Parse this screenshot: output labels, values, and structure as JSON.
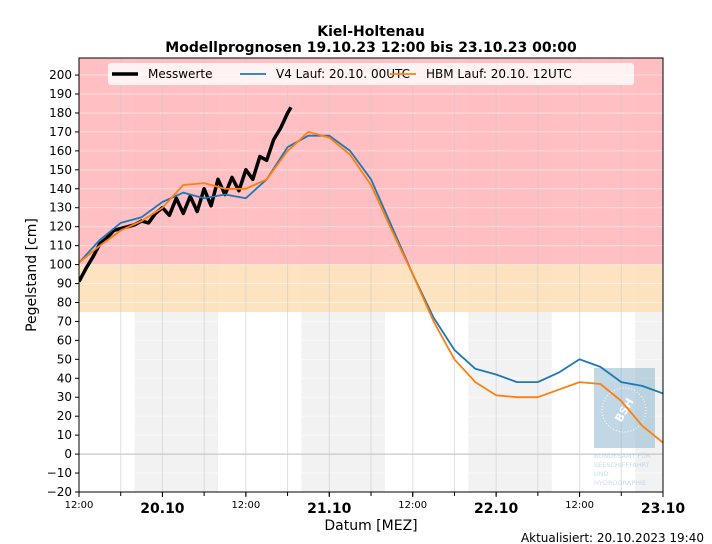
{
  "chart_data": {
    "type": "line",
    "title": "Kiel-Holtenau",
    "subtitle": "Modellprognosen 19.10.23 12:00 bis 23.10.23 00:00",
    "xlabel": "Datum [MEZ]",
    "ylabel": "Pegelstand [cm]",
    "xlim": [
      "2023-10-19T12:00",
      "2023-10-23T00:00"
    ],
    "ylim": [
      -20,
      209
    ],
    "yticks": [
      -20,
      -10,
      0,
      10,
      20,
      30,
      40,
      50,
      60,
      70,
      80,
      90,
      100,
      110,
      120,
      130,
      140,
      150,
      160,
      170,
      180,
      190,
      200
    ],
    "xticks": [
      {
        "t": "2023-10-19T12:00",
        "label": "12:00",
        "major": false
      },
      {
        "t": "2023-10-20T00:00",
        "label": "20.10",
        "major": true
      },
      {
        "t": "2023-10-20T12:00",
        "label": "12:00",
        "major": false
      },
      {
        "t": "2023-10-21T00:00",
        "label": "21.10",
        "major": true
      },
      {
        "t": "2023-10-21T12:00",
        "label": "12:00",
        "major": false
      },
      {
        "t": "2023-10-22T00:00",
        "label": "22.10",
        "major": true
      },
      {
        "t": "2023-10-22T12:00",
        "label": "12:00",
        "major": false
      },
      {
        "t": "2023-10-23T00:00",
        "label": "23.10",
        "major": true
      }
    ],
    "grid": true,
    "legend_placement": "top",
    "bands": [
      {
        "from": 100,
        "to": 209,
        "color": "#ffb8bc"
      },
      {
        "from": 75,
        "to": 100,
        "color": "#fde0b8"
      }
    ],
    "night_shading": [
      [
        "2023-10-19T20:00",
        "2023-10-20T08:00"
      ],
      [
        "2023-10-20T20:00",
        "2023-10-21T08:00"
      ],
      [
        "2023-10-21T20:00",
        "2023-10-22T08:00"
      ],
      [
        "2023-10-22T20:00",
        "2023-10-23T00:00"
      ]
    ],
    "series": [
      {
        "name": "Messwerte",
        "color": "#000000",
        "x": [
          "2023-10-19T12:00",
          "2023-10-19T13:00",
          "2023-10-19T14:00",
          "2023-10-19T15:00",
          "2023-10-19T16:00",
          "2023-10-19T17:00",
          "2023-10-19T18:00",
          "2023-10-19T19:00",
          "2023-10-19T20:00",
          "2023-10-19T21:00",
          "2023-10-19T22:00",
          "2023-10-19T23:00",
          "2023-10-20T00:00",
          "2023-10-20T01:00",
          "2023-10-20T02:00",
          "2023-10-20T03:00",
          "2023-10-20T04:00",
          "2023-10-20T05:00",
          "2023-10-20T06:00",
          "2023-10-20T07:00",
          "2023-10-20T08:00",
          "2023-10-20T09:00",
          "2023-10-20T10:00",
          "2023-10-20T11:00",
          "2023-10-20T12:00",
          "2023-10-20T13:00",
          "2023-10-20T14:00",
          "2023-10-20T15:00",
          "2023-10-20T16:00",
          "2023-10-20T17:00",
          "2023-10-20T18:00",
          "2023-10-20T18:30"
        ],
        "values": [
          91,
          98,
          104,
          111,
          114,
          118,
          119,
          120,
          121,
          123,
          122,
          127,
          130,
          126,
          135,
          127,
          136,
          128,
          140,
          131,
          145,
          137,
          146,
          139,
          150,
          145,
          157,
          155,
          166,
          172,
          180,
          183
        ]
      },
      {
        "name": "V4 Lauf: 20.10. 00UTC",
        "color": "#1f77b4",
        "x": [
          "2023-10-19T12:00",
          "2023-10-19T15:00",
          "2023-10-19T18:00",
          "2023-10-19T21:00",
          "2023-10-20T00:00",
          "2023-10-20T03:00",
          "2023-10-20T06:00",
          "2023-10-20T09:00",
          "2023-10-20T12:00",
          "2023-10-20T15:00",
          "2023-10-20T18:00",
          "2023-10-20T21:00",
          "2023-10-21T00:00",
          "2023-10-21T03:00",
          "2023-10-21T06:00",
          "2023-10-21T09:00",
          "2023-10-21T12:00",
          "2023-10-21T15:00",
          "2023-10-21T18:00",
          "2023-10-21T21:00",
          "2023-10-22T00:00",
          "2023-10-22T03:00",
          "2023-10-22T06:00",
          "2023-10-22T09:00",
          "2023-10-22T12:00",
          "2023-10-22T15:00",
          "2023-10-22T18:00",
          "2023-10-22T21:00",
          "2023-10-23T00:00"
        ],
        "values": [
          101,
          113,
          122,
          125,
          133,
          138,
          135,
          137,
          135,
          145,
          162,
          168,
          168,
          160,
          145,
          120,
          95,
          72,
          55,
          45,
          42,
          38,
          38,
          43,
          50,
          46,
          38,
          36,
          32
        ]
      },
      {
        "name": "HBM Lauf: 20.10. 12UTC",
        "color": "#ff7f0e",
        "x": [
          "2023-10-19T12:00",
          "2023-10-19T15:00",
          "2023-10-19T18:00",
          "2023-10-19T21:00",
          "2023-10-20T00:00",
          "2023-10-20T03:00",
          "2023-10-20T06:00",
          "2023-10-20T09:00",
          "2023-10-20T12:00",
          "2023-10-20T15:00",
          "2023-10-20T18:00",
          "2023-10-20T21:00",
          "2023-10-21T00:00",
          "2023-10-21T03:00",
          "2023-10-21T06:00",
          "2023-10-21T09:00",
          "2023-10-21T12:00",
          "2023-10-21T15:00",
          "2023-10-21T18:00",
          "2023-10-21T21:00",
          "2023-10-22T00:00",
          "2023-10-22T03:00",
          "2023-10-22T06:00",
          "2023-10-22T09:00",
          "2023-10-22T12:00",
          "2023-10-22T15:00",
          "2023-10-22T18:00",
          "2023-10-22T21:00",
          "2023-10-23T00:00"
        ],
        "values": [
          101,
          110,
          118,
          123,
          130,
          142,
          143,
          140,
          140,
          145,
          160,
          170,
          167,
          158,
          142,
          118,
          95,
          70,
          50,
          38,
          31,
          30,
          30,
          34,
          38,
          37,
          28,
          15,
          6
        ]
      }
    ]
  },
  "updated": "Aktualisiert: 20.10.2023 19:40",
  "logo": {
    "short": "BSH",
    "text": "BUNDESAMT FÜR SEESCHIFFFAHRT UND HYDROGRAPHIE"
  }
}
